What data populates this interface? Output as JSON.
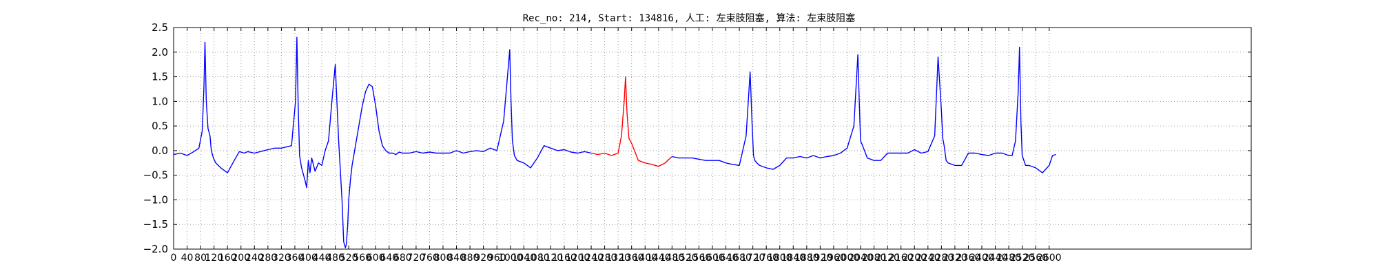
{
  "chart_data": {
    "type": "line",
    "title": "Rec_no: 214, Start: 134816, 人工: 左束肢阻塞, 算法: 左束肢阻塞",
    "xlabel": "",
    "ylabel": "",
    "xlim": [
      0,
      3200
    ],
    "ylim": [
      -2.0,
      2.5
    ],
    "grid": true,
    "grid_style": "dotted",
    "x_ticks": [
      0,
      40,
      80,
      120,
      160,
      200,
      240,
      280,
      320,
      360,
      400,
      440,
      480,
      520,
      560,
      600,
      640,
      680,
      720,
      760,
      800,
      840,
      880,
      920,
      960,
      1000,
      1040,
      1080,
      1120,
      1160,
      1200,
      1240,
      1280,
      1320,
      1360,
      1400,
      1440,
      1480,
      1520,
      1560,
      1600,
      1640,
      1680,
      1720,
      1760,
      1800,
      1840,
      1880,
      1920,
      1960,
      2000,
      2040,
      2080,
      2120,
      2160,
      2200,
      2240,
      2280,
      2320,
      2360,
      2400,
      2440,
      2480,
      2520,
      2560,
      2600
    ],
    "y_ticks": [
      -2.0,
      -1.5,
      -1.0,
      -0.5,
      0.0,
      0.5,
      1.0,
      1.5,
      2.0,
      2.5
    ],
    "y_tick_labels": [
      "−2.0",
      "−1.5",
      "−1.0",
      "−0.5",
      "0.0",
      "0.5",
      "1.0",
      "1.5",
      "2.0",
      "2.5"
    ],
    "colors": {
      "normal": "#0000ff",
      "highlight": "#ff0000"
    },
    "series": [
      {
        "color": "#0000ff",
        "x": [
          0,
          20,
          40,
          60,
          75,
          85,
          90,
          93,
          97,
          102,
          108,
          112,
          118,
          125,
          140,
          160,
          180,
          195,
          210,
          220,
          240,
          280,
          300,
          320,
          350,
          362,
          366,
          370,
          374,
          380,
          390,
          395,
          400,
          405,
          410,
          420,
          430,
          440,
          450,
          460,
          470,
          480,
          490,
          500,
          505,
          510,
          513,
          517,
          520,
          525,
          530,
          535,
          540,
          550,
          560,
          570,
          580,
          590,
          600,
          610,
          620,
          630,
          640,
          650,
          660,
          670,
          680,
          700,
          720,
          740,
          760,
          780,
          800,
          820,
          840,
          860,
          880,
          900,
          920,
          940,
          960,
          980,
          990,
          998,
          1002,
          1006,
          1012,
          1020,
          1040,
          1060,
          1080,
          1100,
          1120,
          1140,
          1160,
          1180,
          1200,
          1220,
          1240
        ],
        "y": [
          -0.08,
          -0.05,
          -0.1,
          -0.02,
          0.05,
          0.4,
          1.3,
          2.2,
          1.0,
          0.45,
          0.3,
          0.0,
          -0.15,
          -0.25,
          -0.35,
          -0.45,
          -0.2,
          -0.02,
          -0.05,
          -0.02,
          -0.05,
          0.02,
          0.05,
          0.05,
          0.1,
          1.0,
          2.3,
          0.9,
          -0.1,
          -0.35,
          -0.6,
          -0.75,
          -0.2,
          -0.45,
          -0.15,
          -0.42,
          -0.25,
          -0.3,
          0.0,
          0.2,
          1.0,
          1.75,
          0.2,
          -1.0,
          -1.85,
          -1.97,
          -1.9,
          -1.5,
          -1.0,
          -0.6,
          -0.3,
          -0.1,
          0.1,
          0.5,
          0.9,
          1.2,
          1.35,
          1.3,
          0.9,
          0.4,
          0.1,
          0.0,
          -0.05,
          -0.05,
          -0.08,
          -0.03,
          -0.05,
          -0.05,
          -0.02,
          -0.05,
          -0.03,
          -0.05,
          -0.05,
          -0.05,
          0.0,
          -0.05,
          -0.02,
          0.0,
          -0.02,
          0.05,
          0.0,
          0.6,
          1.4,
          2.05,
          1.0,
          0.2,
          -0.1,
          -0.2,
          -0.25,
          -0.35,
          -0.15,
          0.1,
          0.05,
          0.0,
          0.02,
          -0.03,
          -0.05,
          -0.02,
          -0.05
        ]
      },
      {
        "color": "#ff0000",
        "x": [
          1240,
          1260,
          1280,
          1300,
          1320,
          1330,
          1338,
          1342,
          1346,
          1352,
          1360,
          1380,
          1400,
          1420,
          1440,
          1460,
          1470,
          1480
        ],
        "y": [
          -0.05,
          -0.08,
          -0.05,
          -0.1,
          -0.05,
          0.3,
          1.0,
          1.5,
          0.8,
          0.25,
          0.15,
          -0.2,
          -0.25,
          -0.28,
          -0.32,
          -0.25,
          -0.18,
          -0.12
        ]
      },
      {
        "color": "#0000ff",
        "x": [
          1480,
          1500,
          1540,
          1580,
          1620,
          1640,
          1660,
          1680,
          1700,
          1712,
          1718,
          1722,
          1726,
          1732,
          1740,
          1760,
          1780,
          1800,
          1820,
          1840,
          1860,
          1880,
          1900,
          1920,
          1940,
          1960,
          1980,
          2000,
          2020,
          2032,
          2036,
          2040,
          2046,
          2060,
          2080,
          2100,
          2120,
          2140,
          2160,
          2180,
          2200,
          2220,
          2240,
          2260,
          2270,
          2280,
          2284,
          2288,
          2294,
          2300,
          2320,
          2340,
          2360,
          2380,
          2400,
          2420,
          2440,
          2460,
          2480,
          2490,
          2500,
          2508,
          2512,
          2516,
          2520,
          2530,
          2540,
          2560,
          2580,
          2600,
          2610,
          2620
        ],
        "y": [
          -0.12,
          -0.15,
          -0.15,
          -0.2,
          -0.2,
          -0.25,
          -0.28,
          -0.3,
          0.3,
          1.6,
          0.5,
          -0.1,
          -0.2,
          -0.25,
          -0.3,
          -0.35,
          -0.38,
          -0.3,
          -0.15,
          -0.15,
          -0.12,
          -0.15,
          -0.1,
          -0.15,
          -0.12,
          -0.1,
          -0.05,
          0.05,
          0.5,
          1.95,
          1.0,
          0.2,
          0.1,
          -0.15,
          -0.2,
          -0.2,
          -0.05,
          -0.05,
          -0.05,
          -0.05,
          0.02,
          -0.05,
          -0.02,
          0.3,
          1.9,
          0.8,
          0.25,
          0.1,
          -0.2,
          -0.25,
          -0.3,
          -0.3,
          -0.05,
          -0.05,
          -0.08,
          -0.1,
          -0.05,
          -0.05,
          -0.1,
          -0.1,
          0.2,
          1.2,
          2.1,
          0.6,
          -0.1,
          -0.3,
          -0.3,
          -0.35,
          -0.45,
          -0.3,
          -0.1,
          -0.08
        ]
      }
    ]
  }
}
